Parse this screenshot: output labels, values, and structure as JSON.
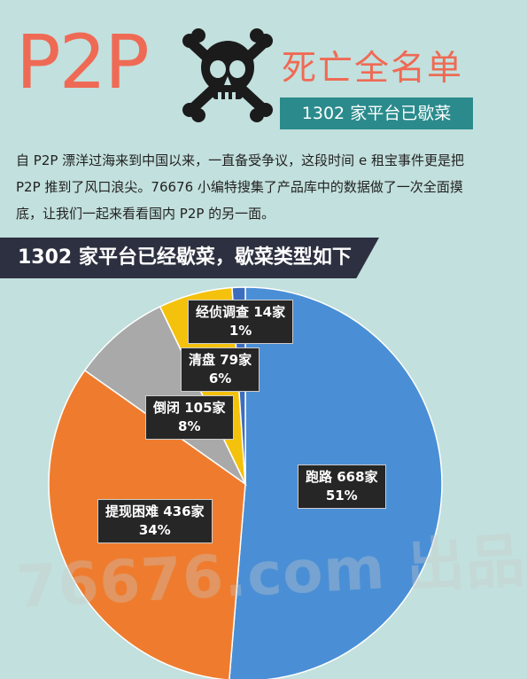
{
  "header": {
    "p2p": "P2P",
    "title": "死亡全名单",
    "badge": "1302 家平台已歇菜"
  },
  "intro_text": "自 P2P 漂洋过海来到中国以来，一直备受争议，这段时间 e 租宝事件更是把 P2P 推到了风口浪尖。76676 小编特搜集了产品库中的数据做了一次全面摸底，让我们一起来看看国内 P2P 的另一面。",
  "section_title": "1302 家平台已经歇菜，歇菜类型如下",
  "watermark": "76676.com 出品",
  "colors": {
    "background": "#c2e0dd",
    "accent": "#ef6a55",
    "teal": "#2b8b8c",
    "banner": "#2d3040"
  },
  "icons": [
    "skull-crossbones-icon"
  ],
  "chart_data": {
    "type": "pie",
    "total": 1302,
    "slices": [
      {
        "label": "跑路 668家",
        "value": 668,
        "percent_label": "51%",
        "color": "#4a8fd6"
      },
      {
        "label": "提现困难 436家",
        "value": 436,
        "percent_label": "34%",
        "color": "#ef7c2e"
      },
      {
        "label": "倒闭 105家",
        "value": 105,
        "percent_label": "8%",
        "color": "#a9a9a9"
      },
      {
        "label": "清盘 79家",
        "value": 79,
        "percent_label": "6%",
        "color": "#f4c20d"
      },
      {
        "label": "经侦调查 14家",
        "value": 14,
        "percent_label": "1%",
        "color": "#3d6dbf"
      }
    ]
  }
}
